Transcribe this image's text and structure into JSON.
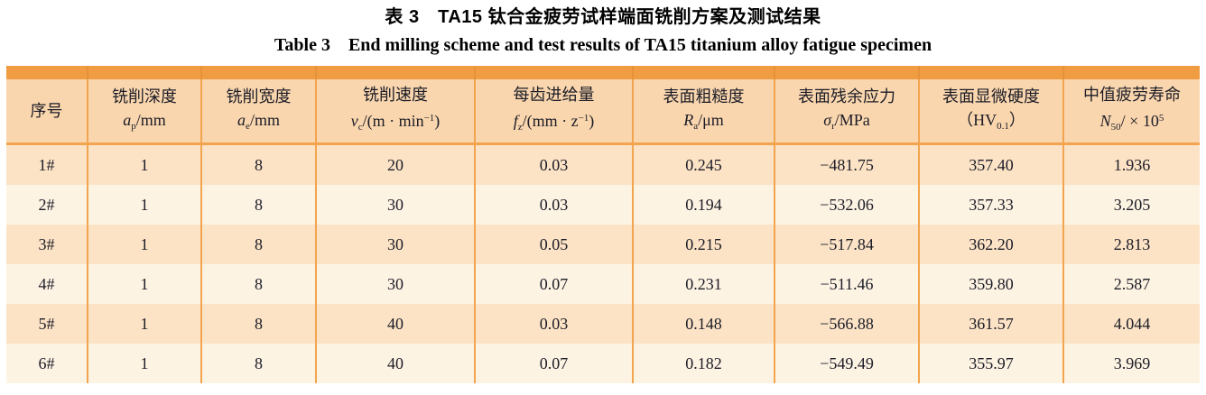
{
  "caption": {
    "zh": "表 3　TA15 钛合金疲劳试样端面铣削方案及测试结果",
    "en": "Table 3　End milling scheme and test results of TA15 titanium alloy fatigue specimen"
  },
  "colors": {
    "top_bar": "#f09c42",
    "header_bg": "#f9d6ae",
    "row_odd_bg": "#fce3c6",
    "row_even_bg": "#fdf3e3",
    "border": "#f2a44e",
    "text": "#1c1c26"
  },
  "table": {
    "columns": [
      {
        "id": "index",
        "title": "序号",
        "symbol": []
      },
      {
        "id": "milling-depth",
        "title": "铣削深度",
        "symbol": [
          {
            "k": "i",
            "t": "a"
          },
          {
            "k": "sub",
            "t": "p"
          },
          {
            "k": "p",
            "t": "/mm"
          }
        ]
      },
      {
        "id": "milling-width",
        "title": "铣削宽度",
        "symbol": [
          {
            "k": "i",
            "t": "a"
          },
          {
            "k": "sub",
            "t": "e"
          },
          {
            "k": "p",
            "t": "/mm"
          }
        ]
      },
      {
        "id": "milling-speed",
        "title": "铣削速度",
        "symbol": [
          {
            "k": "i",
            "t": "v"
          },
          {
            "k": "sub",
            "t": "c"
          },
          {
            "k": "p",
            "t": "/(m · min"
          },
          {
            "k": "sup",
            "t": "−1"
          },
          {
            "k": "p",
            "t": ")"
          }
        ]
      },
      {
        "id": "feed-per-tooth",
        "title": "每齿进给量",
        "symbol": [
          {
            "k": "i",
            "t": "f"
          },
          {
            "k": "sub",
            "t": "z"
          },
          {
            "k": "p",
            "t": "/(mm · z"
          },
          {
            "k": "sup",
            "t": "−1"
          },
          {
            "k": "p",
            "t": ")"
          }
        ]
      },
      {
        "id": "surface-roughness",
        "title": "表面粗糙度",
        "symbol": [
          {
            "k": "i",
            "t": "R"
          },
          {
            "k": "sub",
            "t": "a"
          },
          {
            "k": "p",
            "t": "/μm"
          }
        ]
      },
      {
        "id": "residual-stress",
        "title": "表面残余应力",
        "symbol": [
          {
            "k": "i",
            "t": "σ"
          },
          {
            "k": "sub",
            "t": "r"
          },
          {
            "k": "p",
            "t": "/MPa"
          }
        ]
      },
      {
        "id": "microhardness",
        "title": "表面显微硬度",
        "symbol": [
          {
            "k": "p",
            "t": "（HV"
          },
          {
            "k": "sub",
            "t": "0.1"
          },
          {
            "k": "p",
            "t": "）"
          }
        ]
      },
      {
        "id": "median-fatigue-life",
        "title": "中值疲劳寿命",
        "symbol": [
          {
            "k": "i",
            "t": "N"
          },
          {
            "k": "sub",
            "t": "50"
          },
          {
            "k": "p",
            "t": "/ × 10"
          },
          {
            "k": "sup",
            "t": "5"
          }
        ]
      }
    ],
    "rows": [
      [
        "1#",
        "1",
        "8",
        "20",
        "0.03",
        "0.245",
        "−481.75",
        "357.40",
        "1.936"
      ],
      [
        "2#",
        "1",
        "8",
        "30",
        "0.03",
        "0.194",
        "−532.06",
        "357.33",
        "3.205"
      ],
      [
        "3#",
        "1",
        "8",
        "30",
        "0.05",
        "0.215",
        "−517.84",
        "362.20",
        "2.813"
      ],
      [
        "4#",
        "1",
        "8",
        "30",
        "0.07",
        "0.231",
        "−511.46",
        "359.80",
        "2.587"
      ],
      [
        "5#",
        "1",
        "8",
        "40",
        "0.03",
        "0.148",
        "−566.88",
        "361.57",
        "4.044"
      ],
      [
        "6#",
        "1",
        "8",
        "40",
        "0.07",
        "0.182",
        "−549.49",
        "355.97",
        "3.969"
      ]
    ]
  }
}
